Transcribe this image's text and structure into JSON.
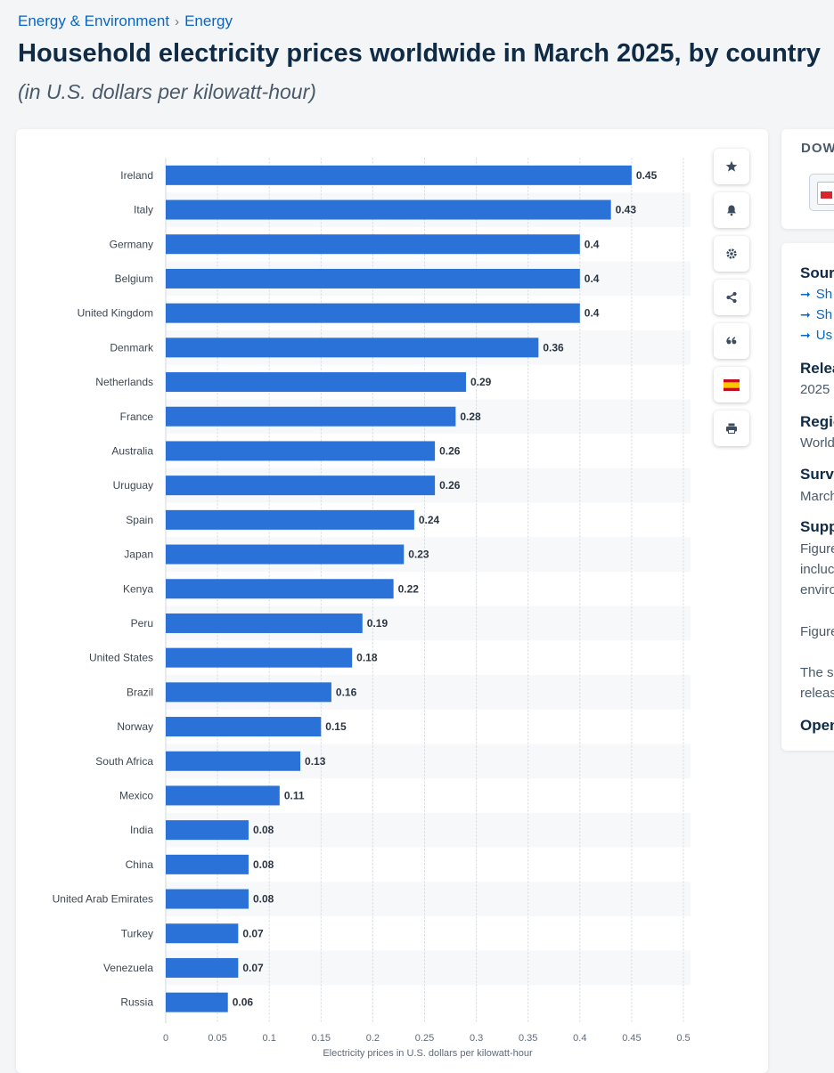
{
  "breadcrumb": {
    "items": [
      "Energy & Environment",
      "Energy"
    ],
    "separator": "›"
  },
  "header": {
    "title": "Household electricity prices worldwide in March 2025, by country",
    "subtitle": "(in U.S. dollars per kilowatt-hour)"
  },
  "colors": {
    "bar": "#2a72d8",
    "accent": "#0a66c2",
    "title": "#0f2b46"
  },
  "toolbar": {
    "icons": [
      "star-icon",
      "bell-icon",
      "gear-icon",
      "share-icon",
      "quote-icon",
      "flag-icon",
      "print-icon"
    ]
  },
  "download": {
    "label": "DOW",
    "file_icon": "pdf-icon"
  },
  "info": {
    "source_heading": "Sour",
    "source_links": [
      "Sh",
      "Sh",
      "Us"
    ],
    "release_heading": "Relea",
    "release_value": "2025",
    "region_heading": "Regio",
    "region_value": "World",
    "survey_heading": "Surve",
    "survey_value": "March",
    "supp_heading": "Supp",
    "supp_lines": [
      "Figure",
      "incluc",
      "enviro",
      "Figure",
      "The so",
      "releas"
    ],
    "open_heading": "Open"
  },
  "chart_data": {
    "type": "bar",
    "orientation": "horizontal",
    "categories": [
      "Ireland",
      "Italy",
      "Germany",
      "Belgium",
      "United Kingdom",
      "Denmark",
      "Netherlands",
      "France",
      "Australia",
      "Uruguay",
      "Spain",
      "Japan",
      "Kenya",
      "Peru",
      "United States",
      "Brazil",
      "Norway",
      "South Africa",
      "Mexico",
      "India",
      "China",
      "United Arab Emirates",
      "Turkey",
      "Venezuela",
      "Russia"
    ],
    "values": [
      0.45,
      0.43,
      0.4,
      0.4,
      0.4,
      0.36,
      0.29,
      0.28,
      0.26,
      0.26,
      0.24,
      0.23,
      0.22,
      0.19,
      0.18,
      0.16,
      0.15,
      0.13,
      0.11,
      0.08,
      0.08,
      0.08,
      0.07,
      0.07,
      0.06
    ],
    "value_labels": [
      "0.45",
      "0.43",
      "0.4",
      "0.4",
      "0.4",
      "0.36",
      "0.29",
      "0.28",
      "0.26",
      "0.26",
      "0.24",
      "0.23",
      "0.22",
      "0.19",
      "0.18",
      "0.16",
      "0.15",
      "0.13",
      "0.11",
      "0.08",
      "0.08",
      "0.08",
      "0.07",
      "0.07",
      "0.06"
    ],
    "xlabel": "Electricity prices in U.S. dollars per kilowatt-hour",
    "xlim": [
      0,
      0.5
    ],
    "xticks": [
      "0",
      "0.05",
      "0.1",
      "0.15",
      "0.2",
      "0.25",
      "0.3",
      "0.35",
      "0.4",
      "0.45",
      "0.5"
    ],
    "grid": true
  }
}
